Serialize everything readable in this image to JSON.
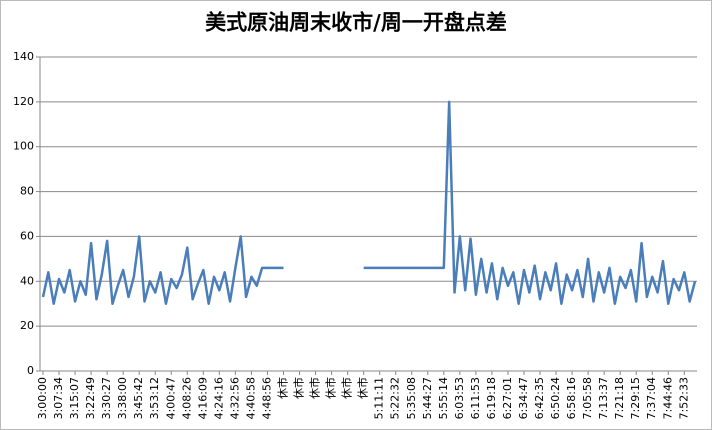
{
  "chart_data": {
    "type": "line",
    "title": "美式原油周末收市/周一开盘点差",
    "categories": [
      "3:00:00",
      null,
      null,
      "3:07:34",
      null,
      null,
      "3:15:07",
      null,
      null,
      "3:22:49",
      null,
      null,
      "3:30:27",
      null,
      null,
      "3:38:00",
      null,
      null,
      "3:45:42",
      null,
      null,
      "3:53:12",
      null,
      null,
      "4:00:47",
      null,
      null,
      "4:08:26",
      null,
      null,
      "4:16:09",
      null,
      null,
      "4:24:16",
      null,
      null,
      "4:32:56",
      null,
      null,
      "4:40:58",
      null,
      null,
      "4:48:56",
      null,
      null,
      "休市",
      null,
      null,
      "休市",
      null,
      null,
      "休市",
      null,
      null,
      "休市",
      null,
      null,
      "休市",
      null,
      null,
      "休市",
      null,
      null,
      "5:11:11",
      null,
      null,
      "5:22:32",
      null,
      null,
      "5:35:08",
      null,
      null,
      "5:44:27",
      null,
      null,
      "5:55:14",
      null,
      null,
      "6:03:53",
      null,
      null,
      "6:11:53",
      null,
      null,
      "6:19:18",
      null,
      null,
      "6:27:01",
      null,
      null,
      "6:34:47",
      null,
      null,
      "6:42:35",
      null,
      null,
      "6:50:24",
      null,
      null,
      "6:58:16",
      null,
      null,
      "7:05:58",
      null,
      null,
      "7:13:37",
      null,
      null,
      "7:21:18",
      null,
      null,
      "7:29:15",
      null,
      null,
      "7:37:04",
      null,
      null,
      "7:44:46",
      null,
      null,
      "7:52:33",
      null,
      null
    ],
    "values": [
      33,
      44,
      30,
      41,
      35,
      45,
      31,
      40,
      34,
      57,
      32,
      43,
      58,
      30,
      38,
      45,
      33,
      42,
      60,
      31,
      40,
      35,
      44,
      30,
      41,
      37,
      43,
      55,
      32,
      39,
      45,
      30,
      42,
      36,
      44,
      31,
      46,
      60,
      33,
      42,
      38,
      46,
      46,
      46,
      46,
      46,
      null,
      null,
      null,
      null,
      null,
      null,
      null,
      null,
      null,
      null,
      null,
      null,
      null,
      null,
      46,
      46,
      46,
      46,
      46,
      46,
      46,
      46,
      46,
      46,
      46,
      46,
      46,
      46,
      46,
      46,
      120,
      35,
      60,
      36,
      59,
      34,
      50,
      35,
      48,
      32,
      46,
      38,
      44,
      30,
      45,
      35,
      47,
      32,
      44,
      36,
      48,
      30,
      43,
      36,
      45,
      33,
      50,
      31,
      44,
      35,
      46,
      30,
      42,
      37,
      45,
      31,
      57,
      33,
      42,
      35,
      49,
      30,
      41,
      36,
      44,
      31,
      40
    ],
    "color": "#4a7ebb",
    "ylim": [
      0,
      140
    ],
    "yticks": [
      0,
      20,
      40,
      60,
      80,
      100,
      120,
      140
    ],
    "grid": true
  }
}
